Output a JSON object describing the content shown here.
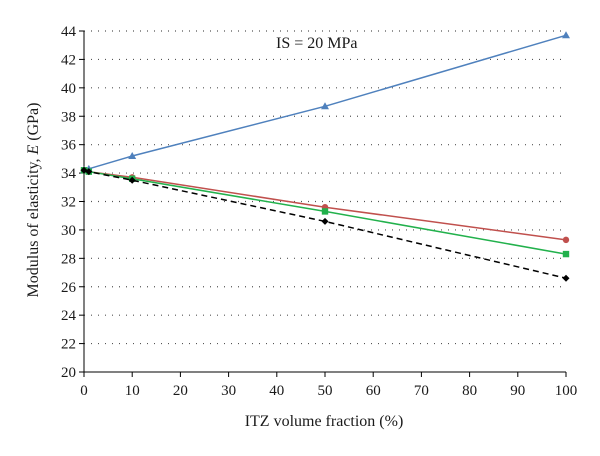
{
  "chart_data": {
    "type": "line",
    "annotation": "IS = 20 MPa",
    "xlabel": "ITZ volume fraction (%)",
    "ylabel_prefix": "Modulus of elasticity, ",
    "ylabel_italic": "E",
    "ylabel_suffix": " (GPa)",
    "xlim": [
      0,
      100
    ],
    "ylim": [
      20,
      44
    ],
    "x_ticks": [
      0,
      10,
      20,
      30,
      40,
      50,
      60,
      70,
      80,
      90,
      100
    ],
    "y_ticks": [
      20,
      22,
      24,
      26,
      28,
      30,
      32,
      34,
      36,
      38,
      40,
      42,
      44
    ],
    "grid": "horizontal dotted",
    "legend": "none",
    "series": [
      {
        "color": "#4f81bd",
        "marker": "triangle",
        "line_style": "solid",
        "x": [
          0,
          1,
          10,
          50,
          100
        ],
        "y": [
          34.2,
          34.3,
          35.2,
          38.7,
          43.7
        ]
      },
      {
        "color": "#c0504d",
        "marker": "circle",
        "line_style": "solid",
        "x": [
          0,
          1,
          10,
          50,
          100
        ],
        "y": [
          34.2,
          34.1,
          33.7,
          31.6,
          29.3
        ]
      },
      {
        "color": "#22b14c",
        "marker": "square",
        "line_style": "solid",
        "x": [
          0,
          1,
          10,
          50,
          100
        ],
        "y": [
          34.2,
          34.1,
          33.6,
          31.3,
          28.3
        ]
      },
      {
        "color": "#000000",
        "marker": "diamond",
        "line_style": "dashed",
        "x": [
          0,
          1,
          10,
          50,
          100
        ],
        "y": [
          34.2,
          34.1,
          33.5,
          30.6,
          26.6
        ]
      }
    ]
  }
}
